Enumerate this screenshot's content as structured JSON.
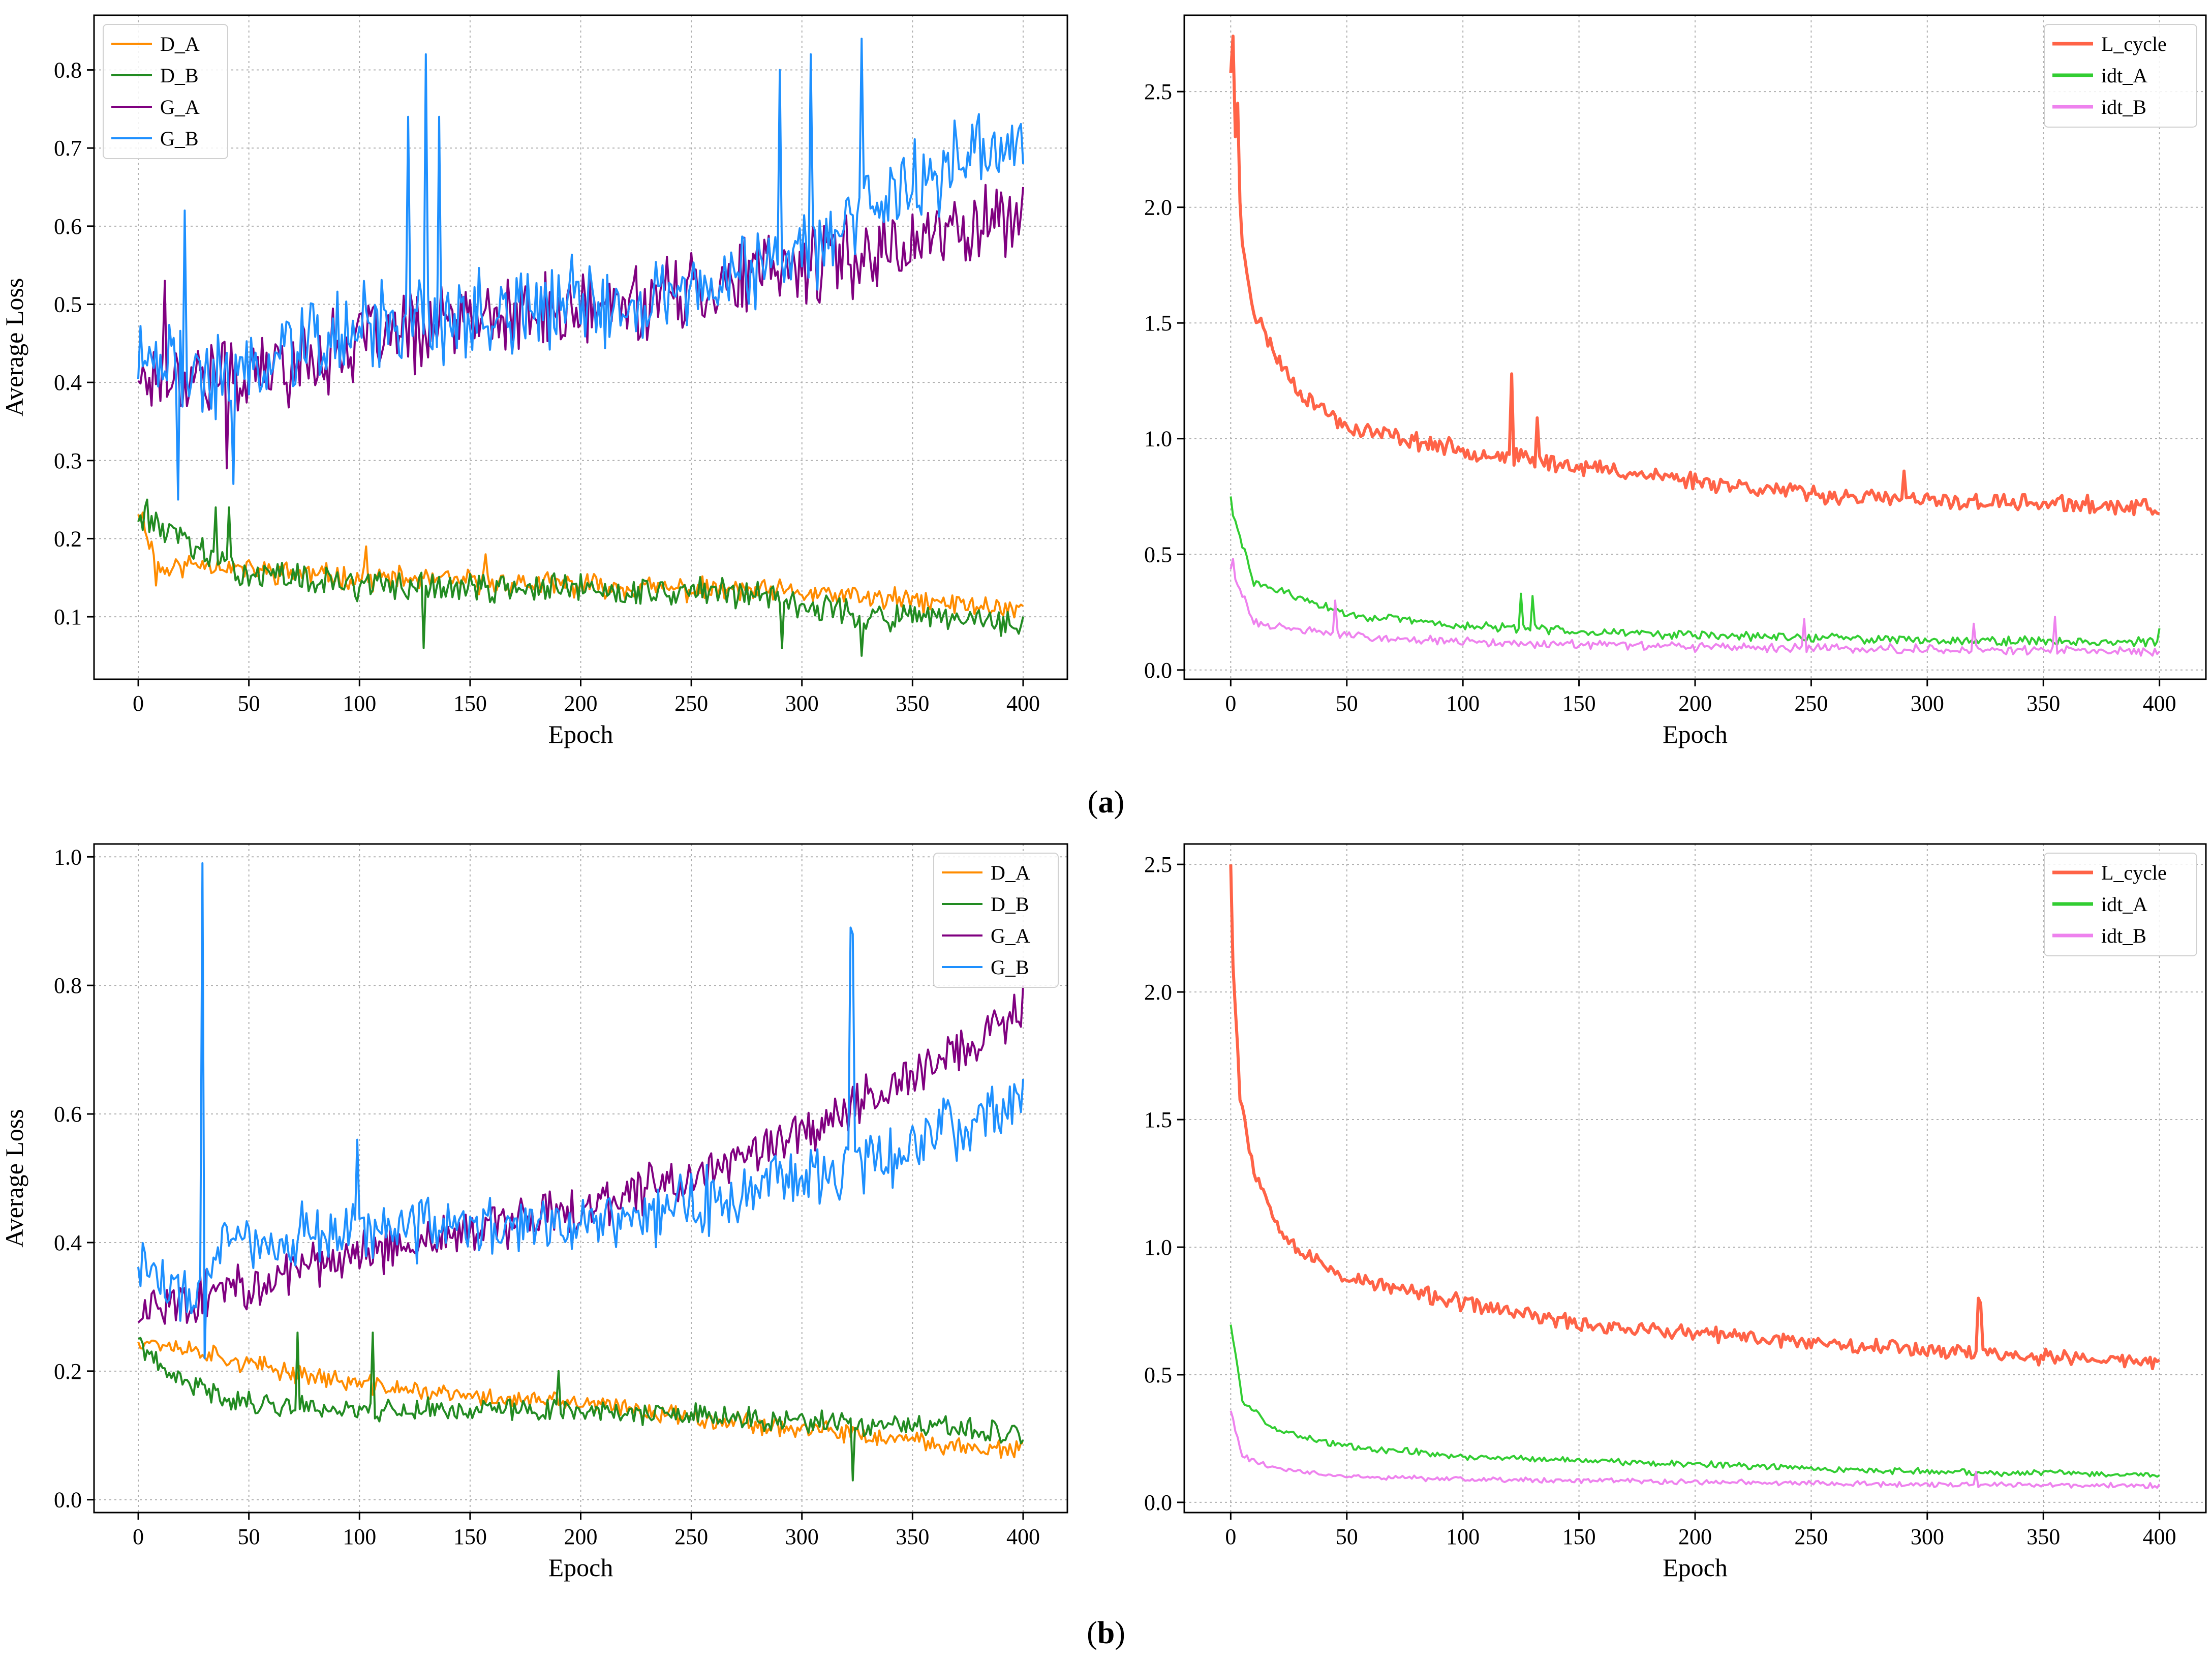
{
  "figure": {
    "captions": [
      "(a)",
      "(b)"
    ],
    "caption_bold_letters": [
      "a",
      "b"
    ]
  },
  "chart_data": [
    {
      "id": "a-left",
      "type": "line",
      "xlabel": "Epoch",
      "ylabel": "Average Loss",
      "xlim": [
        -20,
        420
      ],
      "ylim": [
        0.02,
        0.87
      ],
      "xticks": [
        0,
        50,
        100,
        150,
        200,
        250,
        300,
        350,
        400
      ],
      "yticks": [
        0.1,
        0.2,
        0.3,
        0.4,
        0.5,
        0.6,
        0.7,
        0.8
      ],
      "grid": true,
      "legend_position": "top-left",
      "legend_line_style": "thin",
      "series": [
        {
          "name": "D_A",
          "color": "#ff8c00",
          "anchors": [
            [
              0,
              0.24
            ],
            [
              10,
              0.16
            ],
            [
              30,
              0.17
            ],
            [
              50,
              0.16
            ],
            [
              100,
              0.15
            ],
            [
              200,
              0.14
            ],
            [
              300,
              0.13
            ],
            [
              400,
              0.11
            ]
          ],
          "noise": 0.012,
          "seed": 11,
          "spikes": [
            [
              3,
              0.21
            ],
            [
              8,
              0.14
            ],
            [
              103,
              0.19
            ],
            [
              157,
              0.18
            ]
          ]
        },
        {
          "name": "D_B",
          "color": "#228b22",
          "anchors": [
            [
              0,
              0.23
            ],
            [
              20,
              0.2
            ],
            [
              40,
              0.16
            ],
            [
              100,
              0.14
            ],
            [
              200,
              0.135
            ],
            [
              280,
              0.13
            ],
            [
              330,
              0.1
            ],
            [
              400,
              0.09
            ]
          ],
          "noise": 0.015,
          "seed": 13,
          "spikes": [
            [
              4,
              0.25
            ],
            [
              35,
              0.24
            ],
            [
              41,
              0.24
            ],
            [
              129,
              0.06
            ],
            [
              291,
              0.06
            ],
            [
              327,
              0.05
            ]
          ]
        },
        {
          "name": "G_A",
          "color": "#800080",
          "anchors": [
            [
              0,
              0.41
            ],
            [
              50,
              0.41
            ],
            [
              100,
              0.45
            ],
            [
              150,
              0.48
            ],
            [
              200,
              0.49
            ],
            [
              250,
              0.52
            ],
            [
              300,
              0.55
            ],
            [
              350,
              0.58
            ],
            [
              400,
              0.62
            ]
          ],
          "noise": 0.04,
          "seed": 17,
          "spikes": [
            [
              12,
              0.53
            ],
            [
              400,
              0.65
            ],
            [
              40,
              0.29
            ]
          ]
        },
        {
          "name": "G_B",
          "color": "#1e90ff",
          "anchors": [
            [
              0,
              0.45
            ],
            [
              30,
              0.4
            ],
            [
              100,
              0.47
            ],
            [
              200,
              0.5
            ],
            [
              250,
              0.52
            ],
            [
              300,
              0.57
            ],
            [
              350,
              0.66
            ],
            [
              400,
              0.7
            ]
          ],
          "noise": 0.045,
          "seed": 19,
          "spikes": [
            [
              21,
              0.62
            ],
            [
              18,
              0.25
            ],
            [
              43,
              0.27
            ],
            [
              130,
              0.82
            ],
            [
              122,
              0.74
            ],
            [
              136,
              0.74
            ],
            [
              290,
              0.8
            ],
            [
              304,
              0.82
            ],
            [
              327,
              0.84
            ]
          ]
        }
      ]
    },
    {
      "id": "a-right",
      "type": "line",
      "xlabel": "Epoch",
      "ylabel": "",
      "xlim": [
        -20,
        420
      ],
      "ylim": [
        -0.04,
        2.83
      ],
      "xticks": [
        0,
        50,
        100,
        150,
        200,
        250,
        300,
        350,
        400
      ],
      "yticks": [
        0.0,
        0.5,
        1.0,
        1.5,
        2.0,
        2.5
      ],
      "ytick_format": 1,
      "grid": true,
      "legend_position": "top-right",
      "legend_line_style": "thick",
      "series": [
        {
          "name": "L_cycle",
          "color": "#ff6347",
          "width": 6,
          "anchors": [
            [
              0,
              2.6
            ],
            [
              5,
              1.85
            ],
            [
              10,
              1.55
            ],
            [
              20,
              1.35
            ],
            [
              30,
              1.2
            ],
            [
              50,
              1.05
            ],
            [
              100,
              0.95
            ],
            [
              150,
              0.88
            ],
            [
              200,
              0.82
            ],
            [
              250,
              0.76
            ],
            [
              300,
              0.73
            ],
            [
              350,
              0.72
            ],
            [
              400,
              0.7
            ]
          ],
          "noise": 0.03,
          "seed": 23,
          "spikes": [
            [
              1,
              2.74
            ],
            [
              3,
              2.45
            ],
            [
              121,
              1.28
            ],
            [
              132,
              1.09
            ],
            [
              290,
              0.86
            ]
          ]
        },
        {
          "name": "idt_A",
          "color": "#32cd32",
          "anchors": [
            [
              0,
              0.7
            ],
            [
              10,
              0.38
            ],
            [
              50,
              0.24
            ],
            [
              100,
              0.19
            ],
            [
              200,
              0.15
            ],
            [
              300,
              0.13
            ],
            [
              400,
              0.12
            ]
          ],
          "noise": 0.015,
          "seed": 29,
          "spikes": [
            [
              0,
              0.75
            ],
            [
              125,
              0.33
            ],
            [
              130,
              0.32
            ],
            [
              400,
              0.18
            ]
          ]
        },
        {
          "name": "idt_B",
          "color": "#ee82ee",
          "anchors": [
            [
              0,
              0.45
            ],
            [
              10,
              0.2
            ],
            [
              50,
              0.15
            ],
            [
              100,
              0.12
            ],
            [
              200,
              0.1
            ],
            [
              300,
              0.09
            ],
            [
              400,
              0.08
            ]
          ],
          "noise": 0.015,
          "seed": 31,
          "spikes": [
            [
              1,
              0.48
            ],
            [
              45,
              0.3
            ],
            [
              247,
              0.22
            ],
            [
              320,
              0.2
            ],
            [
              355,
              0.23
            ]
          ]
        }
      ]
    },
    {
      "id": "b-left",
      "type": "line",
      "xlabel": "Epoch",
      "ylabel": "Average Loss",
      "xlim": [
        -20,
        420
      ],
      "ylim": [
        -0.02,
        1.02
      ],
      "xticks": [
        0,
        50,
        100,
        150,
        200,
        250,
        300,
        350,
        400
      ],
      "yticks": [
        0.0,
        0.2,
        0.4,
        0.6,
        0.8,
        1.0
      ],
      "ytick_format": 1,
      "grid": true,
      "legend_position": "top-right",
      "legend_line_style": "thin",
      "series": [
        {
          "name": "D_A",
          "color": "#ff8c00",
          "anchors": [
            [
              0,
              0.25
            ],
            [
              30,
              0.23
            ],
            [
              50,
              0.21
            ],
            [
              100,
              0.18
            ],
            [
              150,
              0.16
            ],
            [
              200,
              0.15
            ],
            [
              250,
              0.13
            ],
            [
              300,
              0.11
            ],
            [
              350,
              0.09
            ],
            [
              400,
              0.075
            ]
          ],
          "noise": 0.012,
          "seed": 37,
          "spikes": []
        },
        {
          "name": "D_B",
          "color": "#228b22",
          "anchors": [
            [
              0,
              0.25
            ],
            [
              10,
              0.2
            ],
            [
              30,
              0.17
            ],
            [
              50,
              0.15
            ],
            [
              100,
              0.14
            ],
            [
              200,
              0.14
            ],
            [
              300,
              0.12
            ],
            [
              400,
              0.105
            ]
          ],
          "noise": 0.014,
          "seed": 41,
          "spikes": [
            [
              72,
              0.26
            ],
            [
              106,
              0.26
            ],
            [
              190,
              0.2
            ],
            [
              323,
              0.03
            ]
          ]
        },
        {
          "name": "G_A",
          "color": "#800080",
          "anchors": [
            [
              0,
              0.3
            ],
            [
              50,
              0.33
            ],
            [
              100,
              0.38
            ],
            [
              150,
              0.42
            ],
            [
              200,
              0.45
            ],
            [
              250,
              0.5
            ],
            [
              300,
              0.57
            ],
            [
              350,
              0.66
            ],
            [
              400,
              0.76
            ]
          ],
          "noise": 0.03,
          "seed": 43,
          "spikes": [
            [
              400,
              0.8
            ]
          ]
        },
        {
          "name": "G_B",
          "color": "#1e90ff",
          "anchors": [
            [
              0,
              0.38
            ],
            [
              20,
              0.3
            ],
            [
              40,
              0.4
            ],
            [
              100,
              0.42
            ],
            [
              200,
              0.43
            ],
            [
              250,
              0.46
            ],
            [
              300,
              0.5
            ],
            [
              350,
              0.55
            ],
            [
              400,
              0.63
            ]
          ],
          "noise": 0.04,
          "seed": 47,
          "spikes": [
            [
              29,
              0.99
            ],
            [
              30,
              0.22
            ],
            [
              99,
              0.56
            ],
            [
              322,
              0.89
            ],
            [
              323,
              0.88
            ]
          ]
        }
      ]
    },
    {
      "id": "b-right",
      "type": "line",
      "xlabel": "Epoch",
      "ylabel": "",
      "xlim": [
        -20,
        420
      ],
      "ylim": [
        -0.04,
        2.58
      ],
      "xticks": [
        0,
        50,
        100,
        150,
        200,
        250,
        300,
        350,
        400
      ],
      "yticks": [
        0.0,
        0.5,
        1.0,
        1.5,
        2.0,
        2.5
      ],
      "ytick_format": 1,
      "grid": true,
      "legend_position": "top-right",
      "legend_line_style": "thick",
      "series": [
        {
          "name": "L_cycle",
          "color": "#ff6347",
          "width": 6,
          "anchors": [
            [
              0,
              2.3
            ],
            [
              4,
              1.6
            ],
            [
              10,
              1.3
            ],
            [
              20,
              1.1
            ],
            [
              30,
              0.98
            ],
            [
              50,
              0.88
            ],
            [
              100,
              0.78
            ],
            [
              150,
              0.7
            ],
            [
              200,
              0.66
            ],
            [
              250,
              0.63
            ],
            [
              300,
              0.6
            ],
            [
              350,
              0.57
            ],
            [
              400,
              0.55
            ]
          ],
          "noise": 0.025,
          "seed": 53,
          "spikes": [
            [
              0,
              2.5
            ],
            [
              322,
              0.8
            ],
            [
              323,
              0.78
            ]
          ]
        },
        {
          "name": "idt_A",
          "color": "#32cd32",
          "anchors": [
            [
              0,
              0.7
            ],
            [
              5,
              0.4
            ],
            [
              20,
              0.28
            ],
            [
              50,
              0.22
            ],
            [
              100,
              0.18
            ],
            [
              200,
              0.15
            ],
            [
              300,
              0.12
            ],
            [
              400,
              0.11
            ]
          ],
          "noise": 0.01,
          "seed": 59,
          "spikes": []
        },
        {
          "name": "idt_B",
          "color": "#ee82ee",
          "anchors": [
            [
              0,
              0.36
            ],
            [
              5,
              0.18
            ],
            [
              20,
              0.13
            ],
            [
              50,
              0.1
            ],
            [
              100,
              0.09
            ],
            [
              200,
              0.08
            ],
            [
              300,
              0.07
            ],
            [
              400,
              0.065
            ]
          ],
          "noise": 0.008,
          "seed": 61,
          "spikes": [
            [
              321,
              0.12
            ]
          ]
        }
      ]
    }
  ]
}
